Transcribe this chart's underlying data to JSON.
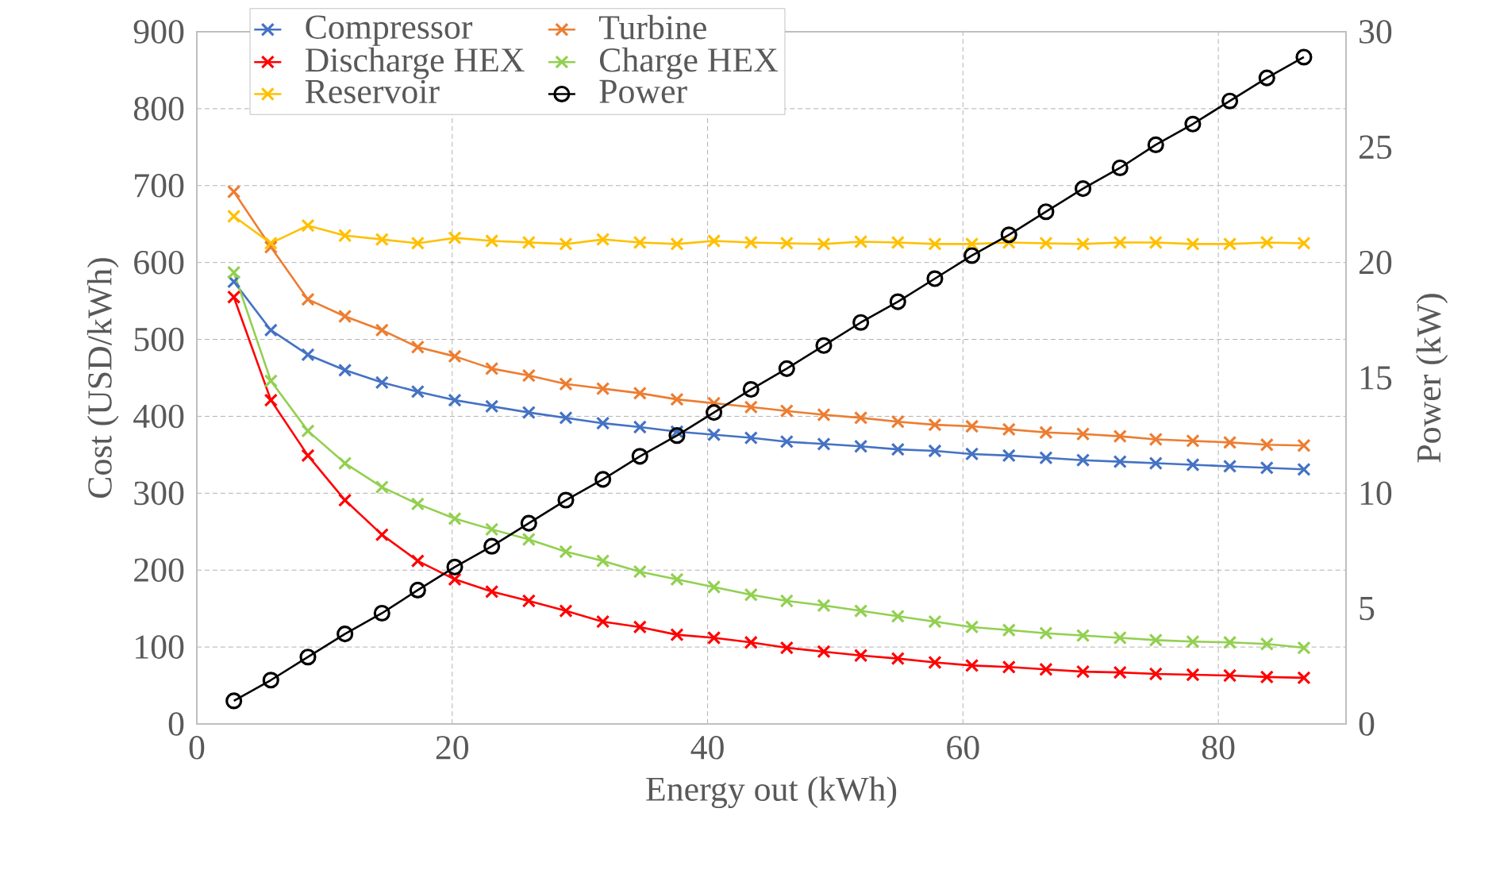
{
  "chart_data": {
    "type": "line",
    "xlabel": "Energy out (kWh)",
    "ylabel": "Cost (USD/kWh)",
    "y2label": "Power (kW)",
    "x": [
      2.9,
      5.8,
      8.7,
      11.6,
      14.5,
      17.3,
      20.2,
      23.1,
      26.0,
      28.9,
      31.8,
      34.7,
      37.6,
      40.5,
      43.4,
      46.2,
      49.1,
      52.0,
      54.9,
      57.8,
      60.7,
      63.6,
      66.5,
      69.4,
      72.3,
      75.1,
      78.0,
      80.9,
      83.8,
      86.7
    ],
    "series": [
      {
        "name": "Compressor",
        "color": "#4472c4",
        "marker": "cross",
        "values": [
          575,
          512,
          480,
          460,
          444,
          432,
          421,
          413,
          405,
          398,
          391,
          386,
          380,
          376,
          372,
          367,
          364,
          361,
          357,
          355,
          351,
          349,
          346,
          343,
          341,
          339,
          337,
          335,
          333,
          331
        ]
      },
      {
        "name": "Turbine",
        "color": "#ed7d31",
        "marker": "cross",
        "values": [
          692,
          620,
          552,
          530,
          512,
          490,
          478,
          462,
          453,
          442,
          436,
          430,
          422,
          417,
          412,
          407,
          402,
          398,
          393,
          389,
          387,
          383,
          379,
          377,
          374,
          370,
          368,
          366,
          363,
          362
        ]
      },
      {
        "name": "Discharge HEX",
        "color": "#ff0000",
        "marker": "cross",
        "values": [
          555,
          421,
          349,
          291,
          246,
          212,
          188,
          172,
          160,
          147,
          133,
          126,
          116,
          112,
          106,
          99,
          94,
          89,
          85,
          80,
          76,
          74,
          71,
          68,
          67,
          65,
          64,
          63,
          61,
          60
        ]
      },
      {
        "name": "Charge HEX",
        "color": "#92d050",
        "marker": "cross",
        "values": [
          587,
          446,
          381,
          339,
          308,
          286,
          267,
          253,
          240,
          224,
          212,
          198,
          188,
          178,
          168,
          160,
          154,
          147,
          140,
          133,
          126,
          122,
          118,
          115,
          112,
          109,
          107,
          106,
          104,
          99
        ]
      },
      {
        "name": "Reservoir",
        "color": "#ffc000",
        "marker": "cross",
        "values": [
          660,
          625,
          648,
          635,
          630,
          625,
          632,
          628,
          626,
          624,
          630,
          626,
          624,
          628,
          626,
          625,
          624,
          627,
          626,
          624,
          624,
          626,
          625,
          624,
          626,
          626,
          624,
          624,
          626,
          625
        ]
      },
      {
        "name": "Power",
        "color": "#000000",
        "marker": "circle",
        "axis": "y2",
        "values": [
          1.0,
          1.9,
          2.9,
          3.9,
          4.8,
          5.8,
          6.8,
          7.7,
          8.7,
          9.7,
          10.6,
          11.6,
          12.5,
          13.5,
          14.5,
          15.4,
          16.4,
          17.4,
          18.3,
          19.3,
          20.3,
          21.2,
          22.2,
          23.2,
          24.1,
          25.1,
          26.0,
          27.0,
          28.0,
          28.9
        ]
      }
    ],
    "xlim": [
      0,
      90
    ],
    "xticks": [
      0,
      20,
      40,
      60,
      80
    ],
    "ylim": [
      0,
      900
    ],
    "yticks": [
      0,
      100,
      200,
      300,
      400,
      500,
      600,
      700,
      800,
      900
    ],
    "y2lim": [
      0,
      30
    ],
    "y2ticks": [
      0,
      5,
      10,
      15,
      20,
      25,
      30
    ],
    "grid": true,
    "legend": "top",
    "line_style": "solid"
  }
}
